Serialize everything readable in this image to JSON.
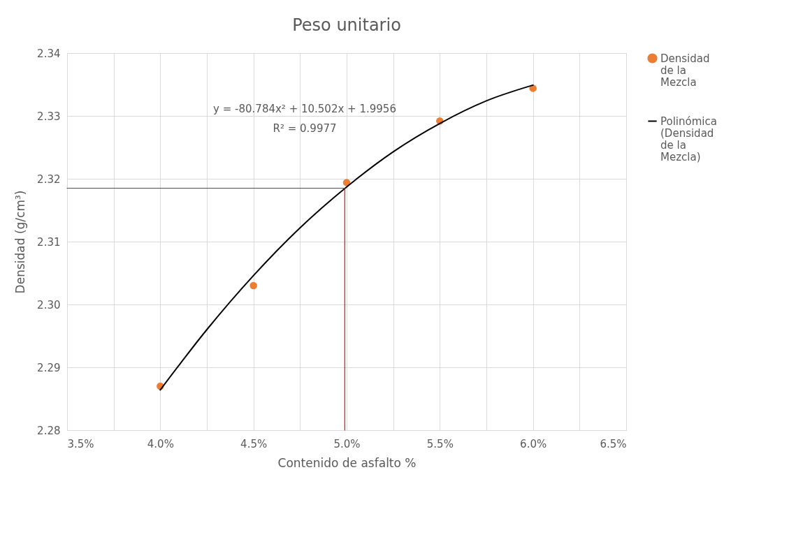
{
  "chart_data": {
    "type": "scatter",
    "title": "Peso unitario",
    "xlabel": "Contenido de asfalto %",
    "ylabel": "Densidad (g/cm³)",
    "series": [
      {
        "name": "Densidad de la Mezcla",
        "color": "#ed7d31",
        "x": [
          0.04,
          0.045,
          0.05,
          0.055,
          0.06
        ],
        "values": [
          2.287,
          2.303,
          2.3194,
          2.3292,
          2.3344
        ]
      },
      {
        "name": "Polinómica (Densidad de la Mezcla)",
        "type": "line",
        "marker": "none",
        "color": "#000000",
        "x": [
          0.04,
          0.0425,
          0.045,
          0.0475,
          0.05,
          0.0525,
          0.055,
          0.0575,
          0.06
        ],
        "values": [
          2.2864,
          2.296,
          2.3046,
          2.3122,
          2.3187,
          2.3243,
          2.3288,
          2.3324,
          2.3349
        ]
      },
      {
        "type": "line",
        "marker": "none",
        "color": "#ff0000",
        "x": [
          0.035,
          0.0499,
          0.0499
        ],
        "values": [
          2.3185,
          2.3185,
          2.28
        ]
      }
    ],
    "xlim": [
      0.035,
      0.065
    ],
    "xticks": [
      {
        "value": 0.035,
        "label": "3.5%"
      },
      {
        "value": 0.0375,
        "label": null
      },
      {
        "value": 0.04,
        "label": "4.0%"
      },
      {
        "value": 0.0425,
        "label": null
      },
      {
        "value": 0.045,
        "label": "4.5%"
      },
      {
        "value": 0.0475,
        "label": null
      },
      {
        "value": 0.05,
        "label": "5.0%"
      },
      {
        "value": 0.0525,
        "label": null
      },
      {
        "value": 0.055,
        "label": "5.5%"
      },
      {
        "value": 0.0575,
        "label": null
      },
      {
        "value": 0.06,
        "label": "6.0%"
      },
      {
        "value": 0.0625,
        "label": null
      },
      {
        "value": 0.065,
        "label": "6.5%"
      }
    ],
    "ylim": [
      2.28,
      2.34
    ],
    "yticks": [
      2.28,
      2.29,
      {
        "value": 2.3,
        "label": "2.30"
      },
      2.31,
      2.32,
      2.33,
      2.34
    ],
    "annotations": [
      "y = -80.784x² + 10.502x + 1.9956",
      "R² = 0.9977"
    ],
    "grid": true,
    "legend": "right",
    "marker": "circle",
    "line_style": "solid"
  }
}
